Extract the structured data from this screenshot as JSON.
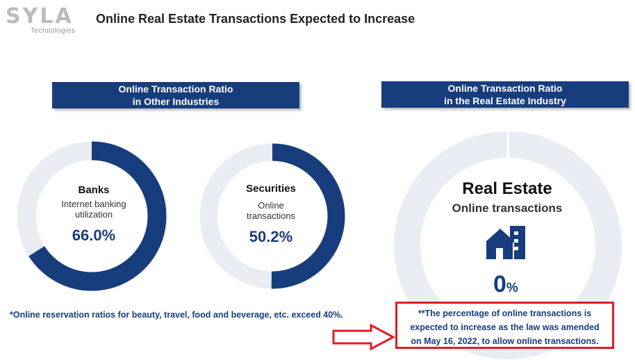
{
  "logo": {
    "main": "SYLA",
    "sub": "Technologies"
  },
  "title": "Online Real Estate Transactions Expected to Increase",
  "left_section": {
    "header_line1": "Online Transaction Ratio",
    "header_line2": "in Other Industries"
  },
  "right_section": {
    "header_line1": "Online Transaction Ratio",
    "header_line2": "in the Real Estate Industry"
  },
  "banks": {
    "title": "Banks",
    "sub_line1": "Internet banking",
    "sub_line2": "utilization",
    "value": "66.0%",
    "fraction": 0.66
  },
  "securities": {
    "title": "Securities",
    "sub_line1": "Online",
    "sub_line2": "transactions",
    "value": "50.2%",
    "fraction": 0.502
  },
  "real_estate": {
    "title": "Real Estate",
    "sub": "Online transactions",
    "value": "0",
    "unit": "%",
    "fraction": 0,
    "icon": "house-building-icon"
  },
  "footnote": "*Online reservation ratios for beauty, travel, food and beverage, etc. exceed 40%.",
  "callout": {
    "line1": "**The percentage of online transactions is",
    "line2": "expected to increase as the law was amended",
    "line3": "on May 16, 2022, to allow online transactions."
  },
  "colors": {
    "navy": "#183d7d",
    "ring_bg": "#e9edf3",
    "callout_red": "#e21c23"
  }
}
